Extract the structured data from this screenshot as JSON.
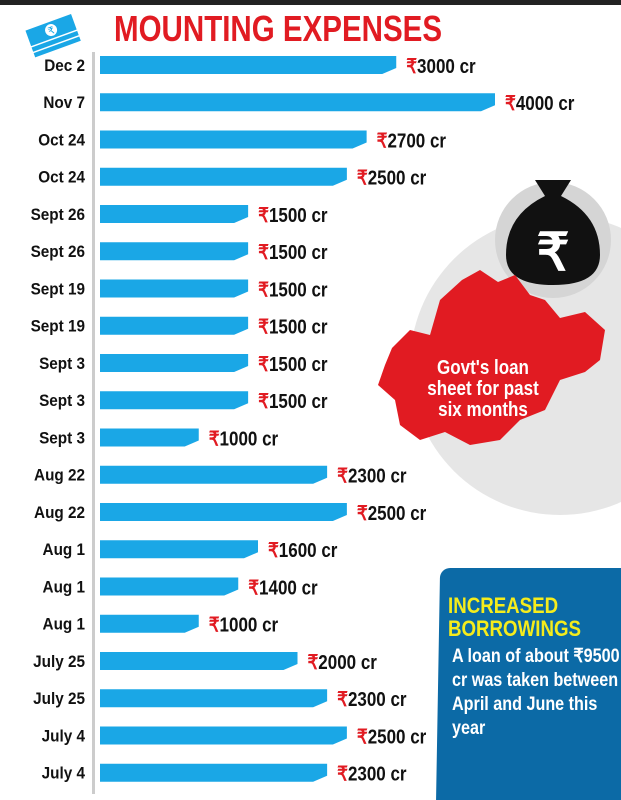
{
  "chart_data": {
    "type": "bar",
    "orientation": "horizontal",
    "title": "MOUNTING EXPENSES",
    "unit_prefix": "₹",
    "unit_suffix": " cr",
    "categories": [
      "Dec 2",
      "Nov 7",
      "Oct 24",
      "Oct 24",
      "Sept 26",
      "Sept 26",
      "Sept 19",
      "Sept 19",
      "Sept 3",
      "Sept 3",
      "Sept 3",
      "Aug 22",
      "Aug 22",
      "Aug 1",
      "Aug 1",
      "Aug 1",
      "July 25",
      "July 25",
      "July 4",
      "July 4"
    ],
    "values": [
      3000,
      4000,
      2700,
      2500,
      1500,
      1500,
      1500,
      1500,
      1500,
      1500,
      1000,
      2300,
      2500,
      1600,
      1400,
      1000,
      2000,
      2300,
      2500,
      2300
    ],
    "xlim": [
      0,
      4000
    ],
    "grid": false,
    "colors": {
      "bar": "#1aa7e6",
      "title": "#e11b22",
      "rupee": "#e11b22"
    }
  },
  "map_callout": {
    "text": "Govt's loan sheet for past six months",
    "color": "#e11b22"
  },
  "side_panel": {
    "heading": "INCREASED BORROWINGS",
    "body": "A loan of about ₹9500 cr was taken between April and June this year",
    "bg": "#0c6aa6",
    "heading_color": "#f5ec1c"
  },
  "icons": [
    "money-stack-icon",
    "money-bag-rupee-icon",
    "madhya-pradesh-map-icon"
  ]
}
